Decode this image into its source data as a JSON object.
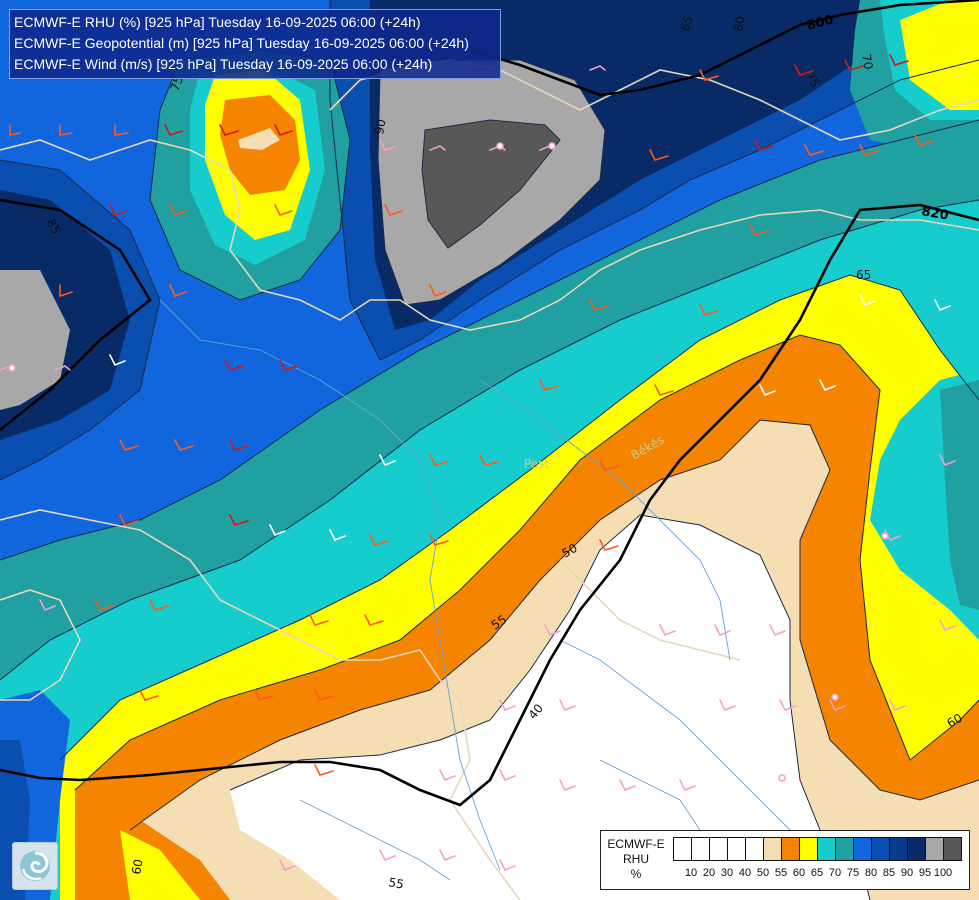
{
  "header": {
    "line1": "ECMWF-E RHU (%) [925 hPa] Tuesday 16-09-2025 06:00 (+24h)",
    "line2": "ECMWF-E Geopotential (m) [925 hPa] Tuesday 16-09-2025 06:00 (+24h)",
    "line3": "ECMWF-E Wind (m/s) [925 hPa] Tuesday 16-09-2025 06:00 (+24h)"
  },
  "legend": {
    "title_lines": [
      "ECMWF-E",
      "RHU",
      "%"
    ],
    "colors": [
      "#ffffff",
      "#ffffff",
      "#ffffff",
      "#ffffff",
      "#ffffff",
      "#f5deb3",
      "#f58400",
      "#ffff00",
      "#17cccc",
      "#20a0a0",
      "#1166dd",
      "#0a4fb0",
      "#0a3a8a",
      "#082a66",
      "#a8a8a8",
      "#585858"
    ],
    "ticks": [
      "10",
      "20",
      "30",
      "40",
      "50",
      "55",
      "60",
      "65",
      "70",
      "75",
      "80",
      "85",
      "90",
      "95",
      "100"
    ]
  },
  "contour_labels": {
    "geopotential": [
      "800",
      "820"
    ],
    "humidity": [
      "75",
      "65",
      "80",
      "90",
      "70",
      "75",
      "65",
      "50",
      "55",
      "40",
      "60",
      "60",
      "55",
      "85"
    ]
  },
  "place_labels": [
    "Pest",
    "Békés"
  ],
  "colors": {
    "geopotential_line": "#000000",
    "border_line": "#e8d8b8",
    "river_line": "#6aa0d8"
  },
  "icons": {
    "logo": "ecmwf-swirl-icon"
  }
}
